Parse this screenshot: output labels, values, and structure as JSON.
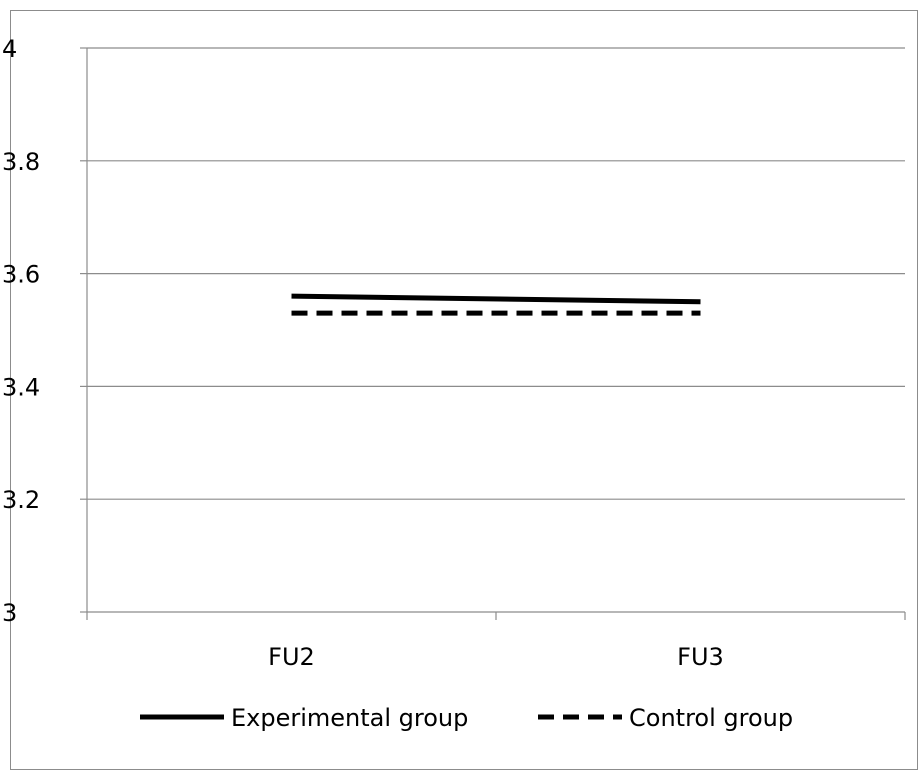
{
  "chart_data": {
    "type": "line",
    "title": "",
    "xlabel": "",
    "ylabel": "",
    "categories": [
      "FU2",
      "FU3"
    ],
    "yticks": [
      "3",
      "3.2",
      "3.4",
      "3.6",
      "3.8",
      "4"
    ],
    "ylim": [
      3,
      4
    ],
    "grid": true,
    "legend_position": "bottom",
    "series": [
      {
        "name": "Experimental group",
        "values": [
          3.56,
          3.55
        ],
        "line_style": "solid",
        "color": "#000000"
      },
      {
        "name": "Control group",
        "values": [
          3.53,
          3.53
        ],
        "line_style": "dashed",
        "color": "#000000"
      }
    ]
  }
}
